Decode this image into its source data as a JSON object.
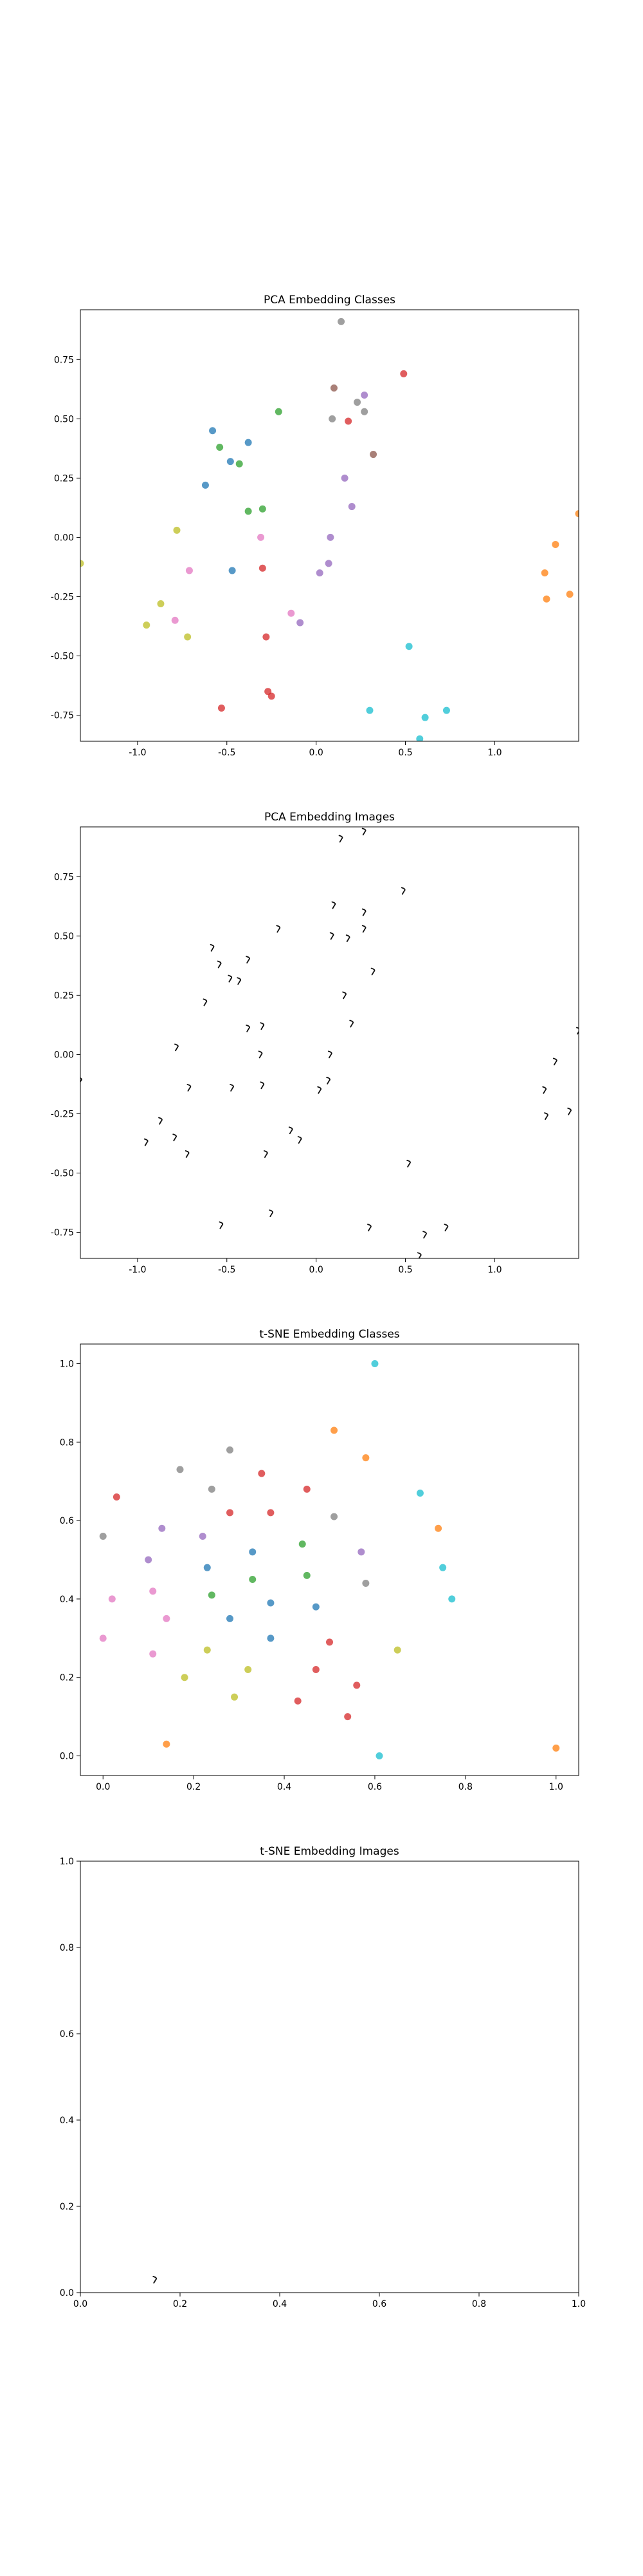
{
  "palette": [
    "#1f77b4",
    "#ff7f0e",
    "#2ca02c",
    "#d62728",
    "#9467bd",
    "#8c564b",
    "#e377c2",
    "#7f7f7f",
    "#bcbd22",
    "#17becf"
  ],
  "chart_data": [
    {
      "type": "scatter",
      "title": "PCA Embedding Classes",
      "marker": "dot",
      "xlim": [
        -1.32,
        1.47
      ],
      "ylim": [
        -0.86,
        0.96
      ],
      "xticks": [
        "-1.0",
        "-0.5",
        "0.0",
        "0.5",
        "1.0"
      ],
      "xtick_values": [
        -1.0,
        -0.5,
        0.0,
        0.5,
        1.0
      ],
      "yticks": [
        "-0.75",
        "-0.50",
        "-0.25",
        "0.00",
        "0.25",
        "0.50",
        "0.75"
      ],
      "ytick_values": [
        -0.75,
        -0.5,
        -0.25,
        0.0,
        0.25,
        0.5,
        0.75
      ],
      "points": [
        {
          "x": 0.14,
          "y": 0.91,
          "c": 7
        },
        {
          "x": 0.49,
          "y": 0.69,
          "c": 3
        },
        {
          "x": 0.1,
          "y": 0.63,
          "c": 5
        },
        {
          "x": 0.27,
          "y": 0.6,
          "c": 4
        },
        {
          "x": 0.23,
          "y": 0.57,
          "c": 7
        },
        {
          "x": 0.27,
          "y": 0.53,
          "c": 7
        },
        {
          "x": 0.09,
          "y": 0.5,
          "c": 7
        },
        {
          "x": 0.18,
          "y": 0.49,
          "c": 3
        },
        {
          "x": -0.21,
          "y": 0.53,
          "c": 2
        },
        {
          "x": -0.58,
          "y": 0.45,
          "c": 0
        },
        {
          "x": -0.38,
          "y": 0.4,
          "c": 0
        },
        {
          "x": -0.54,
          "y": 0.38,
          "c": 2
        },
        {
          "x": -0.48,
          "y": 0.32,
          "c": 0
        },
        {
          "x": -0.43,
          "y": 0.31,
          "c": 2
        },
        {
          "x": 0.32,
          "y": 0.35,
          "c": 5
        },
        {
          "x": 0.16,
          "y": 0.25,
          "c": 4
        },
        {
          "x": -0.62,
          "y": 0.22,
          "c": 0
        },
        {
          "x": -0.38,
          "y": 0.11,
          "c": 2
        },
        {
          "x": -0.3,
          "y": 0.12,
          "c": 2
        },
        {
          "x": 0.2,
          "y": 0.13,
          "c": 4
        },
        {
          "x": -0.78,
          "y": 0.03,
          "c": 8
        },
        {
          "x": -0.31,
          "y": 0.0,
          "c": 6
        },
        {
          "x": 0.08,
          "y": 0.0,
          "c": 4
        },
        {
          "x": -1.32,
          "y": -0.11,
          "c": 8
        },
        {
          "x": -0.71,
          "y": -0.14,
          "c": 6
        },
        {
          "x": -0.47,
          "y": -0.14,
          "c": 0
        },
        {
          "x": -0.3,
          "y": -0.13,
          "c": 3
        },
        {
          "x": 0.07,
          "y": -0.11,
          "c": 4
        },
        {
          "x": 0.02,
          "y": -0.15,
          "c": 4
        },
        {
          "x": -0.87,
          "y": -0.28,
          "c": 8
        },
        {
          "x": -0.79,
          "y": -0.35,
          "c": 6
        },
        {
          "x": -0.95,
          "y": -0.37,
          "c": 8
        },
        {
          "x": -0.72,
          "y": -0.42,
          "c": 8
        },
        {
          "x": -0.14,
          "y": -0.32,
          "c": 6
        },
        {
          "x": -0.09,
          "y": -0.36,
          "c": 4
        },
        {
          "x": -0.28,
          "y": -0.42,
          "c": 3
        },
        {
          "x": -0.27,
          "y": -0.65,
          "c": 3
        },
        {
          "x": -0.25,
          "y": -0.67,
          "c": 3
        },
        {
          "x": -0.53,
          "y": -0.72,
          "c": 3
        },
        {
          "x": 0.52,
          "y": -0.46,
          "c": 9
        },
        {
          "x": 0.3,
          "y": -0.73,
          "c": 9
        },
        {
          "x": 0.61,
          "y": -0.76,
          "c": 9
        },
        {
          "x": 0.73,
          "y": -0.73,
          "c": 9
        },
        {
          "x": 0.58,
          "y": -0.85,
          "c": 9
        },
        {
          "x": 1.47,
          "y": 0.1,
          "c": 1
        },
        {
          "x": 1.34,
          "y": -0.03,
          "c": 1
        },
        {
          "x": 1.28,
          "y": -0.15,
          "c": 1
        },
        {
          "x": 1.29,
          "y": -0.26,
          "c": 1
        },
        {
          "x": 1.42,
          "y": -0.24,
          "c": 1
        }
      ]
    },
    {
      "type": "scatter",
      "title": "PCA Embedding Images",
      "marker": "glyph",
      "xlim": [
        -1.32,
        1.47
      ],
      "ylim": [
        -0.86,
        0.96
      ],
      "xticks": [
        "-1.0",
        "-0.5",
        "0.0",
        "0.5",
        "1.0"
      ],
      "xtick_values": [
        -1.0,
        -0.5,
        0.0,
        0.5,
        1.0
      ],
      "yticks": [
        "-0.75",
        "-0.50",
        "-0.25",
        "0.00",
        "0.25",
        "0.50",
        "0.75"
      ],
      "ytick_values": [
        -0.75,
        -0.5,
        -0.25,
        0.0,
        0.25,
        0.5,
        0.75
      ],
      "points": [
        {
          "x": 0.14,
          "y": 0.91
        },
        {
          "x": 0.27,
          "y": 0.94
        },
        {
          "x": 0.49,
          "y": 0.69
        },
        {
          "x": 0.1,
          "y": 0.63
        },
        {
          "x": 0.27,
          "y": 0.6
        },
        {
          "x": 0.27,
          "y": 0.53
        },
        {
          "x": 0.09,
          "y": 0.5
        },
        {
          "x": 0.18,
          "y": 0.49
        },
        {
          "x": -0.21,
          "y": 0.53
        },
        {
          "x": -0.58,
          "y": 0.45
        },
        {
          "x": -0.38,
          "y": 0.4
        },
        {
          "x": -0.54,
          "y": 0.38
        },
        {
          "x": -0.48,
          "y": 0.32
        },
        {
          "x": -0.43,
          "y": 0.31
        },
        {
          "x": 0.32,
          "y": 0.35
        },
        {
          "x": 0.16,
          "y": 0.25
        },
        {
          "x": -0.62,
          "y": 0.22
        },
        {
          "x": -0.38,
          "y": 0.11
        },
        {
          "x": -0.3,
          "y": 0.12
        },
        {
          "x": 0.2,
          "y": 0.13
        },
        {
          "x": -0.78,
          "y": 0.03
        },
        {
          "x": -0.31,
          "y": 0.0
        },
        {
          "x": 0.08,
          "y": 0.0
        },
        {
          "x": -1.32,
          "y": -0.11
        },
        {
          "x": -0.71,
          "y": -0.14
        },
        {
          "x": -0.47,
          "y": -0.14
        },
        {
          "x": -0.3,
          "y": -0.13
        },
        {
          "x": 0.07,
          "y": -0.11
        },
        {
          "x": 0.02,
          "y": -0.15
        },
        {
          "x": -0.87,
          "y": -0.28
        },
        {
          "x": -0.79,
          "y": -0.35
        },
        {
          "x": -0.95,
          "y": -0.37
        },
        {
          "x": -0.72,
          "y": -0.42
        },
        {
          "x": -0.14,
          "y": -0.32
        },
        {
          "x": -0.09,
          "y": -0.36
        },
        {
          "x": -0.28,
          "y": -0.42
        },
        {
          "x": -0.25,
          "y": -0.67
        },
        {
          "x": -0.53,
          "y": -0.72
        },
        {
          "x": 0.52,
          "y": -0.46
        },
        {
          "x": 0.3,
          "y": -0.73
        },
        {
          "x": 0.61,
          "y": -0.76
        },
        {
          "x": 0.73,
          "y": -0.73
        },
        {
          "x": 0.58,
          "y": -0.85
        },
        {
          "x": 1.47,
          "y": 0.1
        },
        {
          "x": 1.34,
          "y": -0.03
        },
        {
          "x": 1.28,
          "y": -0.15
        },
        {
          "x": 1.29,
          "y": -0.26
        },
        {
          "x": 1.42,
          "y": -0.24
        }
      ]
    },
    {
      "type": "scatter",
      "title": "t-SNE Embedding Classes",
      "marker": "dot",
      "xlim": [
        -0.05,
        1.05
      ],
      "ylim": [
        -0.05,
        1.05
      ],
      "xticks": [
        "0.0",
        "0.2",
        "0.4",
        "0.6",
        "0.8",
        "1.0"
      ],
      "xtick_values": [
        0.0,
        0.2,
        0.4,
        0.6,
        0.8,
        1.0
      ],
      "yticks": [
        "0.0",
        "0.2",
        "0.4",
        "0.6",
        "0.8",
        "1.0"
      ],
      "ytick_values": [
        0.0,
        0.2,
        0.4,
        0.6,
        0.8,
        1.0
      ],
      "points": [
        {
          "x": 0.6,
          "y": 1.0,
          "c": 9
        },
        {
          "x": 0.51,
          "y": 0.83,
          "c": 1
        },
        {
          "x": 0.58,
          "y": 0.76,
          "c": 1
        },
        {
          "x": 0.28,
          "y": 0.78,
          "c": 7
        },
        {
          "x": 0.17,
          "y": 0.73,
          "c": 7
        },
        {
          "x": 0.35,
          "y": 0.72,
          "c": 3
        },
        {
          "x": 0.24,
          "y": 0.68,
          "c": 7
        },
        {
          "x": 0.45,
          "y": 0.68,
          "c": 3
        },
        {
          "x": 0.7,
          "y": 0.67,
          "c": 9
        },
        {
          "x": 0.03,
          "y": 0.66,
          "c": 3
        },
        {
          "x": 0.28,
          "y": 0.62,
          "c": 3
        },
        {
          "x": 0.37,
          "y": 0.62,
          "c": 3
        },
        {
          "x": 0.51,
          "y": 0.61,
          "c": 7
        },
        {
          "x": 0.74,
          "y": 0.58,
          "c": 1
        },
        {
          "x": 0.13,
          "y": 0.58,
          "c": 4
        },
        {
          "x": 0.0,
          "y": 0.56,
          "c": 7
        },
        {
          "x": 0.22,
          "y": 0.56,
          "c": 4
        },
        {
          "x": 0.44,
          "y": 0.54,
          "c": 2
        },
        {
          "x": 0.33,
          "y": 0.52,
          "c": 0
        },
        {
          "x": 0.57,
          "y": 0.52,
          "c": 4
        },
        {
          "x": 0.1,
          "y": 0.5,
          "c": 4
        },
        {
          "x": 0.23,
          "y": 0.48,
          "c": 0
        },
        {
          "x": 0.75,
          "y": 0.48,
          "c": 9
        },
        {
          "x": 0.45,
          "y": 0.46,
          "c": 2
        },
        {
          "x": 0.33,
          "y": 0.45,
          "c": 2
        },
        {
          "x": 0.58,
          "y": 0.44,
          "c": 7
        },
        {
          "x": 0.11,
          "y": 0.42,
          "c": 6
        },
        {
          "x": 0.24,
          "y": 0.41,
          "c": 2
        },
        {
          "x": 0.77,
          "y": 0.4,
          "c": 9
        },
        {
          "x": 0.02,
          "y": 0.4,
          "c": 6
        },
        {
          "x": 0.37,
          "y": 0.39,
          "c": 0
        },
        {
          "x": 0.47,
          "y": 0.38,
          "c": 0
        },
        {
          "x": 0.14,
          "y": 0.35,
          "c": 6
        },
        {
          "x": 0.28,
          "y": 0.35,
          "c": 0
        },
        {
          "x": 0.37,
          "y": 0.3,
          "c": 0
        },
        {
          "x": 0.0,
          "y": 0.3,
          "c": 6
        },
        {
          "x": 0.5,
          "y": 0.29,
          "c": 3
        },
        {
          "x": 0.23,
          "y": 0.27,
          "c": 8
        },
        {
          "x": 0.65,
          "y": 0.27,
          "c": 8
        },
        {
          "x": 0.11,
          "y": 0.26,
          "c": 6
        },
        {
          "x": 0.32,
          "y": 0.22,
          "c": 8
        },
        {
          "x": 0.47,
          "y": 0.22,
          "c": 3
        },
        {
          "x": 0.18,
          "y": 0.2,
          "c": 8
        },
        {
          "x": 0.56,
          "y": 0.18,
          "c": 3
        },
        {
          "x": 0.29,
          "y": 0.15,
          "c": 8
        },
        {
          "x": 0.43,
          "y": 0.14,
          "c": 3
        },
        {
          "x": 0.54,
          "y": 0.1,
          "c": 3
        },
        {
          "x": 0.14,
          "y": 0.03,
          "c": 1
        },
        {
          "x": 0.61,
          "y": 0.0,
          "c": 9
        },
        {
          "x": 1.0,
          "y": 0.02,
          "c": 1
        }
      ]
    },
    {
      "type": "scatter",
      "title": "t-SNE Embedding Images",
      "marker": "glyph",
      "xlim": [
        0.0,
        1.0
      ],
      "ylim": [
        0.0,
        1.0
      ],
      "xticks": [
        "0.0",
        "0.2",
        "0.4",
        "0.6",
        "0.8",
        "1.0"
      ],
      "xtick_values": [
        0.0,
        0.2,
        0.4,
        0.6,
        0.8,
        1.0
      ],
      "yticks": [
        "0.0",
        "0.2",
        "0.4",
        "0.6",
        "0.8",
        "1.0"
      ],
      "ytick_values": [
        0.0,
        0.2,
        0.4,
        0.6,
        0.8,
        1.0
      ],
      "points": [
        {
          "x": 0.15,
          "y": 0.03
        }
      ]
    }
  ]
}
